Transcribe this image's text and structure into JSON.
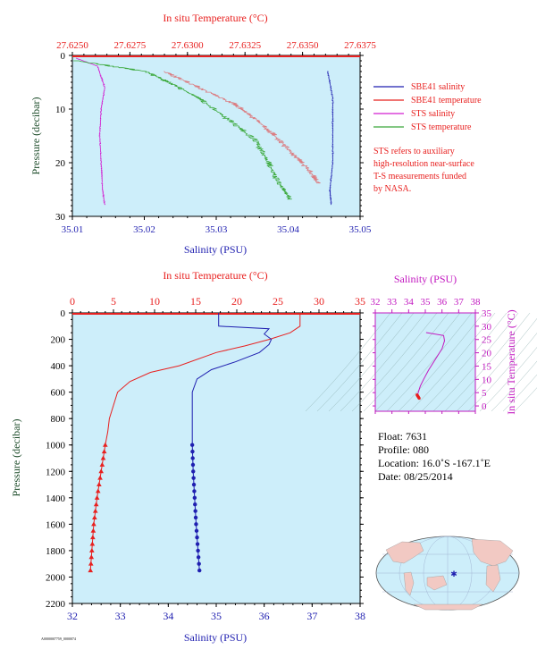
{
  "chart_data": [
    {
      "type": "line",
      "title": "",
      "xlabel_bottom": "Salinity (PSU)",
      "xlabel_top": "In situ Temperature (°C)",
      "ylabel": "Pressure (decibar)",
      "xlim_bottom": [
        35.01,
        35.05
      ],
      "xticks_bottom": [
        "35.01",
        "35.02",
        "35.03",
        "35.04",
        "35.05"
      ],
      "xlim_top": [
        27.625,
        27.6375
      ],
      "xticks_top": [
        "27.6250",
        "27.6275",
        "27.6300",
        "27.6325",
        "27.6350",
        "27.6375"
      ],
      "ylim": [
        0,
        30
      ],
      "yticks": [
        "0",
        "10",
        "20",
        "30"
      ],
      "legend": [
        {
          "name": "SBE41 salinity",
          "color": "#1f1fb0"
        },
        {
          "name": "SBE41 temperature",
          "color": "#e8201f"
        },
        {
          "name": "STS salinity",
          "color": "#d21fd0"
        },
        {
          "name": "STS temperature",
          "color": "#3aa83a"
        }
      ],
      "note": [
        "STS refers to auxiliary",
        "high-resolution near-surface",
        "T-S measurements funded",
        "by NASA."
      ],
      "series": [
        {
          "name": "STS salinity",
          "x": [
            35.0105,
            35.0135,
            35.0145,
            35.014,
            35.0138,
            35.014,
            35.0142,
            35.0145
          ],
          "y": [
            0.5,
            2,
            6,
            10,
            15,
            20,
            25,
            28
          ]
        },
        {
          "name": "STS temperature",
          "x": [
            27.6252,
            27.6282,
            27.6292,
            27.6305,
            27.6318,
            27.633,
            27.6335,
            27.634,
            27.6345
          ],
          "y": [
            1,
            3,
            5,
            8,
            12,
            16,
            20,
            24,
            27
          ]
        },
        {
          "name": "SBE41 temperature",
          "x": [
            27.629,
            27.6305,
            27.632,
            27.633,
            27.6338,
            27.6345,
            27.6352,
            27.6357
          ],
          "y": [
            3,
            6,
            9,
            12,
            15,
            18,
            21,
            24
          ]
        },
        {
          "name": "SBE41 salinity",
          "x": [
            35.0455,
            35.0462,
            35.0462,
            35.0462,
            35.0458,
            35.046
          ],
          "y": [
            3,
            8,
            14,
            20,
            25,
            28
          ]
        }
      ]
    },
    {
      "type": "line",
      "title": "",
      "xlabel_bottom": "Salinity (PSU)",
      "xlabel_top": "In situ Temperature (°C)",
      "ylabel": "Pressure (decibar)",
      "xlim_bottom": [
        32,
        38
      ],
      "xticks_bottom": [
        "32",
        "33",
        "34",
        "35",
        "36",
        "37",
        "38"
      ],
      "xlim_top": [
        0,
        35
      ],
      "xticks_top": [
        "0",
        "5",
        "10",
        "15",
        "20",
        "25",
        "30",
        "35"
      ],
      "ylim": [
        0,
        2200
      ],
      "yticks": [
        "0",
        "200",
        "400",
        "600",
        "800",
        "1000",
        "1200",
        "1400",
        "1600",
        "1800",
        "2000",
        "2200"
      ],
      "series": [
        {
          "name": "Temperature",
          "x": [
            27.7,
            27.7,
            26.5,
            24.0,
            21.0,
            17.5,
            13.0,
            9.5,
            7.0,
            5.5,
            5.0,
            4.5,
            4.3,
            4.0,
            3.5,
            3.0,
            2.6,
            2.2
          ],
          "y": [
            0,
            100,
            150,
            200,
            250,
            300,
            400,
            450,
            520,
            600,
            700,
            800,
            900,
            1000,
            1200,
            1400,
            1600,
            1950
          ]
        },
        {
          "name": "Salinity",
          "x": [
            35.05,
            35.05,
            36.1,
            36.0,
            36.15,
            36.1,
            35.9,
            35.4,
            34.9,
            34.6,
            34.5,
            34.5,
            34.5,
            34.52,
            34.55,
            34.58,
            34.62,
            34.65
          ],
          "y": [
            0,
            100,
            120,
            160,
            200,
            240,
            300,
            370,
            430,
            500,
            600,
            800,
            1000,
            1200,
            1400,
            1600,
            1800,
            1950
          ]
        }
      ]
    },
    {
      "type": "scatter",
      "title": "",
      "xlabel": "Salinity (PSU)",
      "ylabel": "In situ Temperature (°C)",
      "xlim": [
        32,
        38
      ],
      "xticks": [
        "32",
        "33",
        "34",
        "35",
        "36",
        "37",
        "38"
      ],
      "ylim": [
        -2,
        35
      ],
      "yticks": [
        "0",
        "5",
        "10",
        "15",
        "20",
        "25",
        "30",
        "35"
      ],
      "series": [
        {
          "name": "T-S",
          "x": [
            35.05,
            36.1,
            36.15,
            36.0,
            35.6,
            35.2,
            34.9,
            34.7,
            34.6,
            34.55,
            34.5,
            34.55
          ],
          "y": [
            27.6,
            26.5,
            24.5,
            21.5,
            17.5,
            13.5,
            10.0,
            7.5,
            5.5,
            4.5,
            4.0,
            3.0
          ]
        }
      ]
    }
  ],
  "info": {
    "float": "Float:  7631",
    "profile": "Profile:  080",
    "location": "Location:  16.0˚S  -167.1˚E",
    "date": "Date:  08/25/2014"
  },
  "map": {
    "marker_lon": -167.1,
    "marker_lat": -16.0
  },
  "footer": "A0000007759_0000074",
  "colors": {
    "plot_bg": "#cdeefa",
    "temp": "#e8201f",
    "sal": "#1f1fb0",
    "sts_sal": "#d21fd0",
    "sts_temp": "#3aa83a",
    "axis_left": "#1e4d2b",
    "ts": "#c218c0"
  }
}
